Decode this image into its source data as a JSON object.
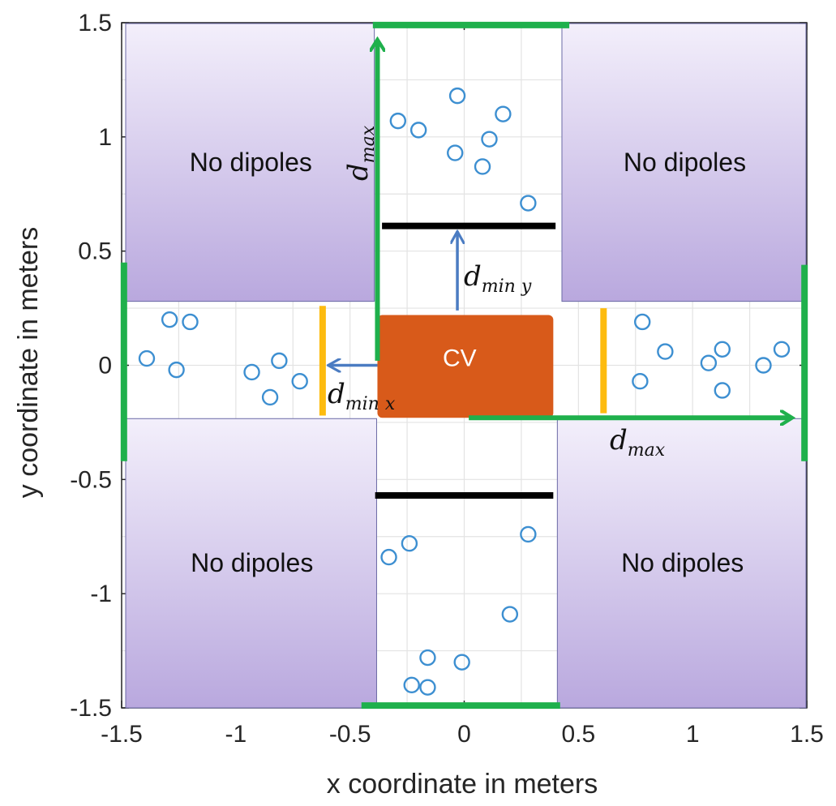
{
  "chart_data": {
    "type": "scatter",
    "xlabel": "x coordinate in meters",
    "ylabel": "y coordinate in meters",
    "xlim": [
      -1.5,
      1.5
    ],
    "ylim": [
      -1.5,
      1.5
    ],
    "xticks": [
      -1.5,
      -1,
      -0.5,
      0,
      0.5,
      1,
      1.5
    ],
    "xtick_labels": [
      "-1.5",
      "-1",
      "-0.5",
      "0",
      "0.5",
      "1",
      "1.5"
    ],
    "yticks": [
      1.5,
      1,
      0.5,
      0,
      -0.5,
      -1,
      -1.5
    ],
    "ytick_labels": [
      "1.5",
      "1",
      "0.5",
      "0",
      "-0.5",
      "-1",
      "-1.5"
    ],
    "grid": true,
    "marker_color": "#3d8fd1",
    "points": [
      {
        "x": -0.29,
        "y": 1.07
      },
      {
        "x": -0.2,
        "y": 1.03
      },
      {
        "x": -0.03,
        "y": 1.18
      },
      {
        "x": -0.04,
        "y": 0.93
      },
      {
        "x": 0.08,
        "y": 0.87
      },
      {
        "x": 0.11,
        "y": 0.99
      },
      {
        "x": 0.17,
        "y": 1.1
      },
      {
        "x": 0.28,
        "y": 0.71
      },
      {
        "x": -1.29,
        "y": 0.2
      },
      {
        "x": -1.2,
        "y": 0.19
      },
      {
        "x": -1.39,
        "y": 0.03
      },
      {
        "x": -1.26,
        "y": -0.02
      },
      {
        "x": -0.93,
        "y": -0.03
      },
      {
        "x": -0.81,
        "y": 0.02
      },
      {
        "x": -0.72,
        "y": -0.07
      },
      {
        "x": -0.85,
        "y": -0.14
      },
      {
        "x": 0.78,
        "y": 0.19
      },
      {
        "x": 0.88,
        "y": 0.06
      },
      {
        "x": 0.77,
        "y": -0.07
      },
      {
        "x": 1.07,
        "y": 0.01
      },
      {
        "x": 1.13,
        "y": 0.07
      },
      {
        "x": 1.13,
        "y": -0.11
      },
      {
        "x": 1.31,
        "y": 0.0
      },
      {
        "x": 1.39,
        "y": 0.07
      },
      {
        "x": -0.33,
        "y": -0.84
      },
      {
        "x": -0.24,
        "y": -0.78
      },
      {
        "x": 0.28,
        "y": -0.74
      },
      {
        "x": 0.2,
        "y": -1.09
      },
      {
        "x": -0.16,
        "y": -1.28
      },
      {
        "x": -0.23,
        "y": -1.4
      },
      {
        "x": -0.16,
        "y": -1.41
      },
      {
        "x": -0.01,
        "y": -1.3
      }
    ],
    "annotations": {
      "zone_label": "No dipoles",
      "zone_color_top": "#f3effb",
      "zone_color_bottom": "#b9a8de",
      "cv_label": "CV",
      "cv_color": "#d85a1a",
      "d_max_main": "d",
      "d_max_sub": "max",
      "d_min_main": "d",
      "d_min_sub": "min",
      "d_min_x_var": "x",
      "d_min_y_var": "y",
      "green_color": "#1fb04c",
      "orange_color": "#fdbb0f",
      "black_color": "#000000",
      "blue_arrow_color": "#4b7cc2"
    }
  }
}
